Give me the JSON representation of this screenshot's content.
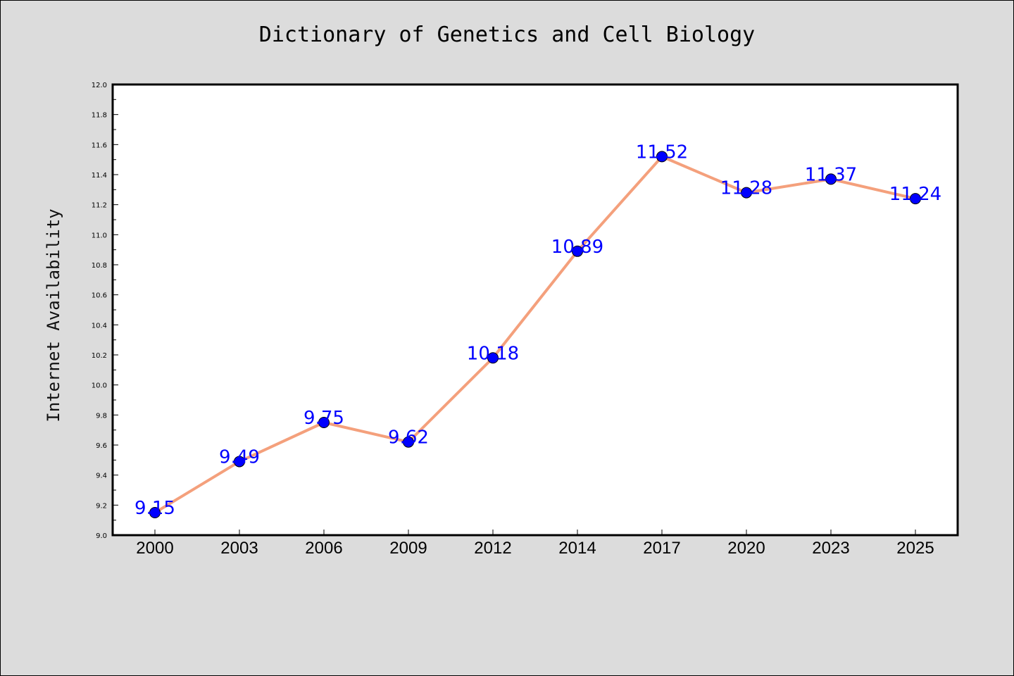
{
  "chart_data": {
    "type": "line",
    "title": "Dictionary of Genetics and Cell Biology",
    "xlabel": "",
    "ylabel": "Internet Availability",
    "categories": [
      "2000",
      "2003",
      "2006",
      "2009",
      "2012",
      "2014",
      "2017",
      "2020",
      "2023",
      "2025"
    ],
    "values": [
      9.15,
      9.49,
      9.75,
      9.62,
      10.18,
      10.89,
      11.52,
      11.28,
      11.37,
      11.24
    ],
    "data_labels": [
      "9.15",
      "9.49",
      "9.75",
      "9.62",
      "10.18",
      "10.89",
      "11.52",
      "11.28",
      "11.37",
      "11.24"
    ],
    "ylim": [
      9.0,
      12.0
    ],
    "yticks": [
      "9.0",
      "9.2",
      "9.4",
      "9.6",
      "9.8",
      "10.0",
      "10.2",
      "10.4",
      "10.6",
      "10.8",
      "11.0",
      "11.2",
      "11.4",
      "11.6",
      "11.8",
      "12.0"
    ],
    "grid": false,
    "colors": {
      "line": "#f4a07c",
      "marker": "#0000ff",
      "label": "#0000ff",
      "background": "#dcdcdc",
      "plot_background": "#ffffff"
    }
  }
}
